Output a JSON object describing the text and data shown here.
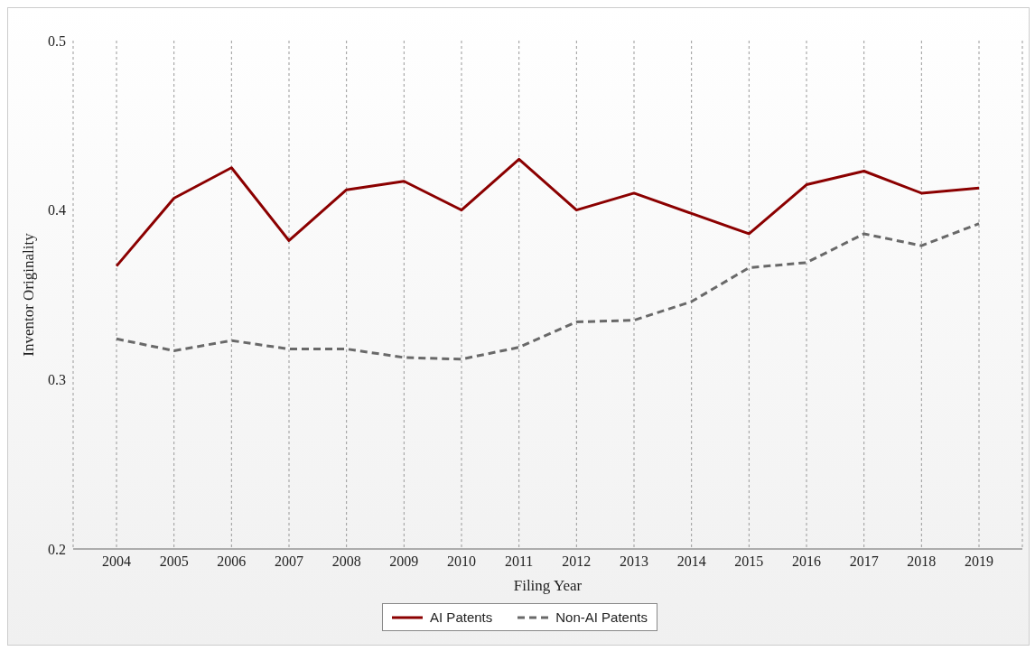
{
  "chart_data": {
    "type": "line",
    "xlabel": "Filing Year",
    "ylabel": "Inventor Originality",
    "categories": [
      "2004",
      "2005",
      "2006",
      "2007",
      "2008",
      "2009",
      "2010",
      "2011",
      "2012",
      "2013",
      "2014",
      "2015",
      "2016",
      "2017",
      "2018",
      "2019"
    ],
    "series": [
      {
        "name": "AI Patents",
        "color": "#8b0000",
        "line_style": "solid",
        "values": [
          0.367,
          0.407,
          0.425,
          0.382,
          0.412,
          0.417,
          0.4,
          0.43,
          0.4,
          0.41,
          0.398,
          0.386,
          0.415,
          0.423,
          0.41,
          0.413
        ]
      },
      {
        "name": "Non-AI Patents",
        "color": "#696969",
        "line_style": "dashed",
        "values": [
          0.324,
          0.317,
          0.323,
          0.318,
          0.318,
          0.313,
          0.312,
          0.319,
          0.334,
          0.335,
          0.346,
          0.366,
          0.369,
          0.386,
          0.379,
          0.392
        ]
      }
    ],
    "ylim": [
      0.2,
      0.5
    ],
    "yticks": [
      0.2,
      0.3,
      0.4,
      0.5
    ],
    "grid": "x",
    "legend": "bottom",
    "marker": "none"
  }
}
